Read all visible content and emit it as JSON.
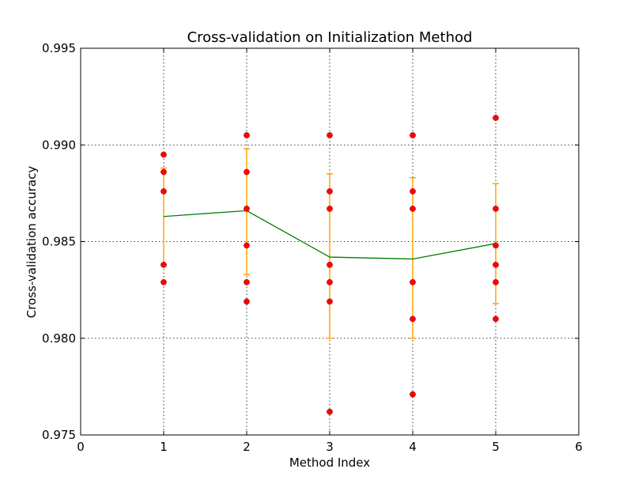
{
  "chart_data": {
    "type": "scatter",
    "title": "Cross-validation on Initialization Method",
    "xlabel": "Method Index",
    "ylabel": "Cross-validation accuracy",
    "xlim": [
      0,
      6
    ],
    "ylim": [
      0.975,
      0.995
    ],
    "xticks": [
      "0",
      "1",
      "2",
      "3",
      "4",
      "5",
      "6"
    ],
    "yticks": [
      "0.975",
      "0.980",
      "0.985",
      "0.990",
      "0.995"
    ],
    "grid": true,
    "colors": {
      "points": "#ff0000",
      "mean_line": "#008000",
      "error_bars": "#ffa500"
    },
    "points": [
      {
        "x": 1,
        "values": [
          0.9895,
          0.9886,
          0.9876,
          0.9838,
          0.9829
        ]
      },
      {
        "x": 2,
        "values": [
          0.9905,
          0.9886,
          0.9867,
          0.9848,
          0.9829,
          0.9819
        ]
      },
      {
        "x": 3,
        "values": [
          0.9905,
          0.9876,
          0.9867,
          0.9838,
          0.9829,
          0.9819,
          0.9762
        ]
      },
      {
        "x": 4,
        "values": [
          0.9905,
          0.9876,
          0.9867,
          0.9829,
          0.981,
          0.9771
        ]
      },
      {
        "x": 5,
        "values": [
          0.9914,
          0.9867,
          0.9848,
          0.9838,
          0.9829,
          0.981
        ]
      }
    ],
    "mean_series": {
      "x": [
        1,
        2,
        3,
        4,
        5
      ],
      "values": [
        0.9863,
        0.9866,
        0.9842,
        0.9841,
        0.9849
      ]
    },
    "error_bars": [
      {
        "x": 1,
        "low": 0.9838,
        "high": 0.9888
      },
      {
        "x": 2,
        "low": 0.9833,
        "high": 0.9898
      },
      {
        "x": 3,
        "low": 0.98,
        "high": 0.9885
      },
      {
        "x": 4,
        "low": 0.98,
        "high": 0.9883
      },
      {
        "x": 5,
        "low": 0.9818,
        "high": 0.988
      }
    ]
  }
}
